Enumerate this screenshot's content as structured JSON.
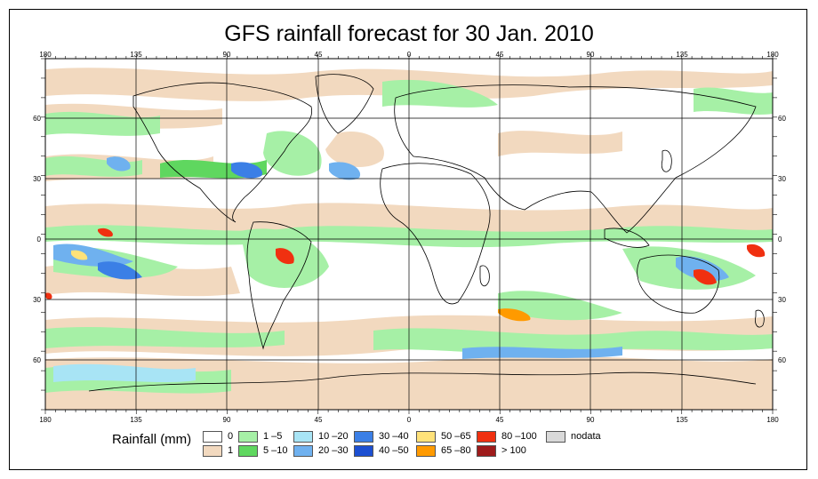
{
  "title": "GFS rainfall forecast for 30 Jan. 2010",
  "lon_labels": [
    "180",
    "135",
    "90",
    "45",
    "0",
    "45",
    "90",
    "135",
    "180"
  ],
  "lat_labels_left": [
    "60",
    "30",
    "0",
    "30",
    "60"
  ],
  "lat_labels_right": [
    "60",
    "30",
    "0",
    "30",
    "60"
  ],
  "legend": {
    "title": "Rainfall (mm)",
    "items": [
      {
        "label": "0",
        "color": "#ffffff"
      },
      {
        "label": "1",
        "color": "#f2d9bf"
      },
      {
        "label": "1 –5",
        "color": "#a6f0a6"
      },
      {
        "label": "5 –10",
        "color": "#5fd75f"
      },
      {
        "label": "10 –20",
        "color": "#a8e4f5"
      },
      {
        "label": "20 –30",
        "color": "#6fb1ef"
      },
      {
        "label": "30 –40",
        "color": "#3b7fe6"
      },
      {
        "label": "40 –50",
        "color": "#1c4fd1"
      },
      {
        "label": "50 –65",
        "color": "#ffe27a"
      },
      {
        "label": "65 –80",
        "color": "#ff9a00"
      },
      {
        "label": "80 –100",
        "color": "#f03010"
      },
      {
        "label": "> 100",
        "color": "#9e1b1b"
      },
      {
        "label": "nodata",
        "color": "#d9d9d9"
      }
    ]
  }
}
